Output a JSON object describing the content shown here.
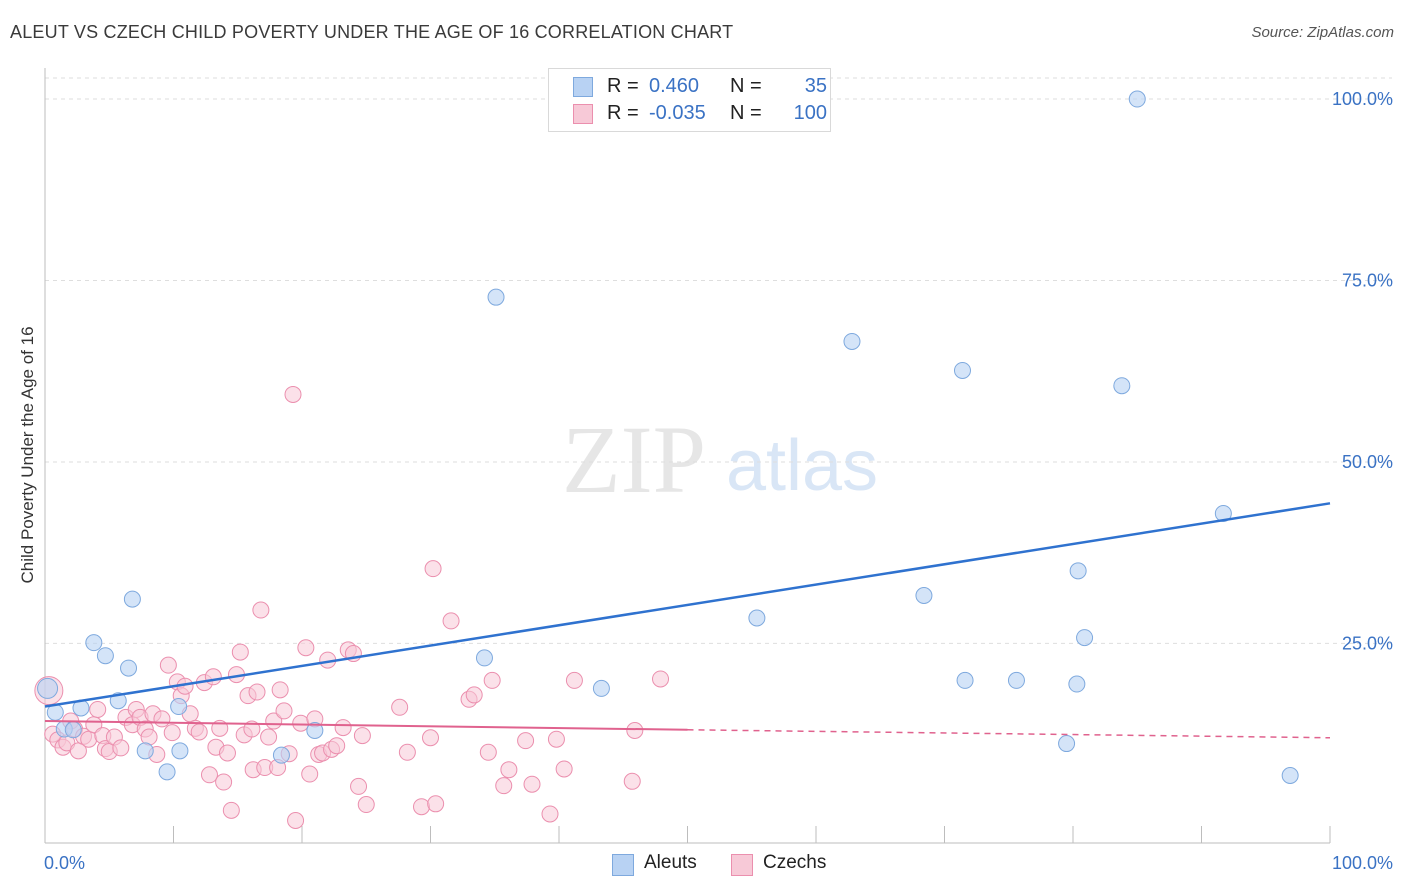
{
  "title": "ALEUT VS CZECH CHILD POVERTY UNDER THE AGE OF 16 CORRELATION CHART",
  "source": "Source: ZipAtlas.com",
  "watermark": {
    "zip": "ZIP",
    "atlas": "atlas"
  },
  "legend_top": [
    {
      "r_label": "R =",
      "r_value": "0.460",
      "n_label": "N =",
      "n_value": "35"
    },
    {
      "r_label": "R =",
      "r_value": "-0.035",
      "n_label": "N =",
      "n_value": "100"
    }
  ],
  "legend_bottom": [
    {
      "label": "Aleuts"
    },
    {
      "label": "Czechs"
    }
  ],
  "colors": {
    "aleut_fill": "#b8d2f3",
    "aleut_stroke": "#7ea9de",
    "aleut_line": "#2f72cf",
    "czech_fill": "#f7c9d7",
    "czech_stroke": "#eb8fae",
    "czech_line": "#e0628e",
    "tick_text": "#3a72c4",
    "grid": "#dedede"
  },
  "chart_data": {
    "type": "scatter",
    "title": "ALEUT VS CZECH CHILD POVERTY UNDER THE AGE OF 16 CORRELATION CHART",
    "xlabel": "",
    "ylabel": "Child Poverty Under the Age of 16",
    "xlim": [
      0,
      100
    ],
    "ylim": [
      -2.5,
      104
    ],
    "x_tick_labels": [
      "0.0%",
      "100.0%"
    ],
    "y_ticks": [
      25,
      50,
      75,
      100
    ],
    "y_tick_labels": [
      "25.0%",
      "50.0%",
      "75.0%",
      "100.0%"
    ],
    "grid": true,
    "legend": "top-center",
    "series": [
      {
        "name": "Aleuts",
        "r": 0.46,
        "n": 35,
        "trend": {
          "x": [
            0,
            100
          ],
          "y": [
            16.3,
            44.3
          ]
        },
        "points": [
          [
            0.2,
            18.8
          ],
          [
            0.8,
            15.5
          ],
          [
            1.5,
            13.2
          ],
          [
            2.2,
            13.1
          ],
          [
            2.8,
            16.1
          ],
          [
            3.8,
            25.1
          ],
          [
            4.7,
            23.3
          ],
          [
            5.7,
            17.1
          ],
          [
            6.5,
            21.6
          ],
          [
            6.8,
            31.1
          ],
          [
            7.8,
            10.2
          ],
          [
            9.5,
            7.3
          ],
          [
            10.4,
            16.3
          ],
          [
            10.5,
            10.2
          ],
          [
            18.4,
            9.6
          ],
          [
            21,
            13
          ],
          [
            34.2,
            23
          ],
          [
            35.1,
            72.7
          ],
          [
            43.3,
            18.8
          ],
          [
            55.4,
            28.5
          ],
          [
            62.8,
            66.6
          ],
          [
            68.4,
            31.6
          ],
          [
            71.4,
            62.6
          ],
          [
            71.6,
            19.9
          ],
          [
            75.6,
            19.9
          ],
          [
            79.5,
            11.2
          ],
          [
            80.3,
            19.4
          ],
          [
            80.4,
            35
          ],
          [
            80.9,
            25.8
          ],
          [
            83.8,
            60.5
          ],
          [
            85,
            100
          ],
          [
            91.7,
            42.9
          ],
          [
            96.9,
            6.8
          ]
        ]
      },
      {
        "name": "Czechs",
        "r": -0.035,
        "n": 100,
        "trend": {
          "x": [
            0,
            50
          ],
          "y": [
            14.3,
            13.1
          ]
        },
        "trend_dashed": {
          "x": [
            50,
            100
          ],
          "y": [
            13.1,
            12.0
          ]
        },
        "points": [
          [
            0.3,
            18.5
          ],
          [
            0.6,
            12.5
          ],
          [
            1,
            11.7
          ],
          [
            1.4,
            10.7
          ],
          [
            1.7,
            11.3
          ],
          [
            2,
            14.3
          ],
          [
            2.3,
            13.2
          ],
          [
            2.6,
            10.2
          ],
          [
            3,
            12.2
          ],
          [
            3.4,
            11.8
          ],
          [
            3.8,
            13.8
          ],
          [
            4.1,
            15.9
          ],
          [
            4.5,
            12.3
          ],
          [
            4.7,
            10.5
          ],
          [
            5,
            10.1
          ],
          [
            5.4,
            12.1
          ],
          [
            5.9,
            10.6
          ],
          [
            6.3,
            14.8
          ],
          [
            6.8,
            13.8
          ],
          [
            7.1,
            15.9
          ],
          [
            7.4,
            14.8
          ],
          [
            7.8,
            13.2
          ],
          [
            8.1,
            12.1
          ],
          [
            8.4,
            15.3
          ],
          [
            8.7,
            9.7
          ],
          [
            9.1,
            14.6
          ],
          [
            9.6,
            22
          ],
          [
            9.9,
            12.7
          ],
          [
            10.3,
            19.7
          ],
          [
            10.6,
            17.8
          ],
          [
            10.9,
            19.1
          ],
          [
            11.3,
            15.3
          ],
          [
            11.7,
            13.3
          ],
          [
            12,
            12.8
          ],
          [
            12.4,
            19.6
          ],
          [
            12.8,
            6.9
          ],
          [
            13.1,
            20.4
          ],
          [
            13.3,
            10.7
          ],
          [
            13.6,
            13.3
          ],
          [
            13.9,
            5.9
          ],
          [
            14.2,
            9.9
          ],
          [
            14.5,
            2
          ],
          [
            14.9,
            20.7
          ],
          [
            15.2,
            23.8
          ],
          [
            15.5,
            12.4
          ],
          [
            15.8,
            17.8
          ],
          [
            16.1,
            13.2
          ],
          [
            16.2,
            7.6
          ],
          [
            16.5,
            18.3
          ],
          [
            16.8,
            29.6
          ],
          [
            17.1,
            7.9
          ],
          [
            17.4,
            12.1
          ],
          [
            17.8,
            14.3
          ],
          [
            18.1,
            7.9
          ],
          [
            18.3,
            18.6
          ],
          [
            18.6,
            15.7
          ],
          [
            19,
            9.8
          ],
          [
            19.3,
            59.3
          ],
          [
            19.5,
            0.6
          ],
          [
            19.9,
            14
          ],
          [
            20.3,
            24.4
          ],
          [
            20.6,
            7
          ],
          [
            21,
            14.6
          ],
          [
            21.3,
            9.7
          ],
          [
            21.6,
            9.9
          ],
          [
            22,
            22.7
          ],
          [
            22.3,
            10.4
          ],
          [
            22.7,
            10.9
          ],
          [
            23.2,
            13.4
          ],
          [
            23.6,
            24.1
          ],
          [
            24,
            23.6
          ],
          [
            24.4,
            5.3
          ],
          [
            24.7,
            12.3
          ],
          [
            25,
            2.8
          ],
          [
            27.6,
            16.2
          ],
          [
            28.2,
            10
          ],
          [
            29.3,
            2.5
          ],
          [
            30,
            12
          ],
          [
            30.2,
            35.3
          ],
          [
            30.4,
            2.9
          ],
          [
            31.6,
            28.1
          ],
          [
            33,
            17.3
          ],
          [
            33.4,
            17.9
          ],
          [
            34.5,
            10
          ],
          [
            34.8,
            19.9
          ],
          [
            35.7,
            5.4
          ],
          [
            36.1,
            7.6
          ],
          [
            37.4,
            11.6
          ],
          [
            37.9,
            5.6
          ],
          [
            39.3,
            1.5
          ],
          [
            39.8,
            11.8
          ],
          [
            40.4,
            7.7
          ],
          [
            41.2,
            19.9
          ],
          [
            45.7,
            6
          ],
          [
            45.9,
            13
          ],
          [
            47.9,
            20.1
          ]
        ]
      }
    ]
  }
}
